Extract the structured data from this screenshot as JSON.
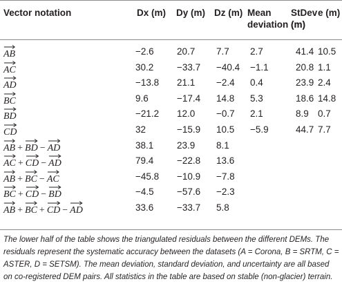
{
  "table": {
    "headers": [
      "Vector notation",
      "Dx (m)",
      "Dy (m)",
      "Dz (m)",
      "Mean deviation (m)",
      "StDev (m)",
      "e (m)"
    ],
    "rows": [
      {
        "vector": [
          {
            "v": "AB"
          }
        ],
        "dx": "−2.6",
        "dy": "20.7",
        "dz": "7.7",
        "mean": "2.7",
        "stdev": "41.4",
        "e": "10.5"
      },
      {
        "vector": [
          {
            "v": "AC"
          }
        ],
        "dx": "30.2",
        "dy": "−33.7",
        "dz": "−40.4",
        "mean": "−1.1",
        "stdev": "20.8",
        "e": "1.1"
      },
      {
        "vector": [
          {
            "v": "AD"
          }
        ],
        "dx": "−13.8",
        "dy": "21.1",
        "dz": "−2.4",
        "mean": "0.4",
        "stdev": "23.9",
        "e": "2.4"
      },
      {
        "vector": [
          {
            "v": "BC"
          }
        ],
        "dx": "9.6",
        "dy": "−17.4",
        "dz": "14.8",
        "mean": "5.3",
        "stdev": "18.6",
        "e": "14.8"
      },
      {
        "vector": [
          {
            "v": "BD"
          }
        ],
        "dx": "−21.2",
        "dy": "12.0",
        "dz": "−0.7",
        "mean": "2.1",
        "stdev": "8.9",
        "e": "0.7"
      },
      {
        "vector": [
          {
            "v": "CD"
          }
        ],
        "dx": "32",
        "dy": "−15.9",
        "dz": "10.5",
        "mean": "−5.9",
        "stdev": "44.7",
        "e": "7.7"
      },
      {
        "vector": [
          {
            "v": "AB"
          },
          {
            "op": "+"
          },
          {
            "v": "BD"
          },
          {
            "op": "−"
          },
          {
            "v": "AD"
          }
        ],
        "dx": "38.1",
        "dy": "23.9",
        "dz": "8.1",
        "mean": "",
        "stdev": "",
        "e": ""
      },
      {
        "vector": [
          {
            "v": "AC"
          },
          {
            "op": "+"
          },
          {
            "v": "CD"
          },
          {
            "op": "−"
          },
          {
            "v": "AD"
          }
        ],
        "dx": "79.4",
        "dy": "−22.8",
        "dz": "13.6",
        "mean": "",
        "stdev": "",
        "e": ""
      },
      {
        "vector": [
          {
            "v": "AB"
          },
          {
            "op": "+"
          },
          {
            "v": "BC"
          },
          {
            "op": "−"
          },
          {
            "v": "AC"
          }
        ],
        "dx": "−45.8",
        "dy": "−10.9",
        "dz": "−7.8",
        "mean": "",
        "stdev": "",
        "e": ""
      },
      {
        "vector": [
          {
            "v": "BC"
          },
          {
            "op": "+"
          },
          {
            "v": "CD"
          },
          {
            "op": "−"
          },
          {
            "v": "BD"
          }
        ],
        "dx": "−4.5",
        "dy": "−57.6",
        "dz": "−2.3",
        "mean": "",
        "stdev": "",
        "e": ""
      },
      {
        "vector": [
          {
            "v": "AB"
          },
          {
            "op": "+"
          },
          {
            "v": "BC"
          },
          {
            "op": "+"
          },
          {
            "v": "CD"
          },
          {
            "op": "−"
          },
          {
            "v": "AD"
          }
        ],
        "dx": "33.6",
        "dy": "−33.7",
        "dz": "5.8",
        "mean": "",
        "stdev": "",
        "e": ""
      }
    ]
  },
  "caption": "The lower half of the table shows the triangulated residuals between the different DEMs. The residuals represent the systematic accuracy between the datasets (A = Corona, B = SRTM, C = ASTER, D = SETSM). The mean deviation, standard deviation, and uncertainty are all based on co-registered DEM pairs. All statistics in the table are based on stable (non-glacier) terrain."
}
